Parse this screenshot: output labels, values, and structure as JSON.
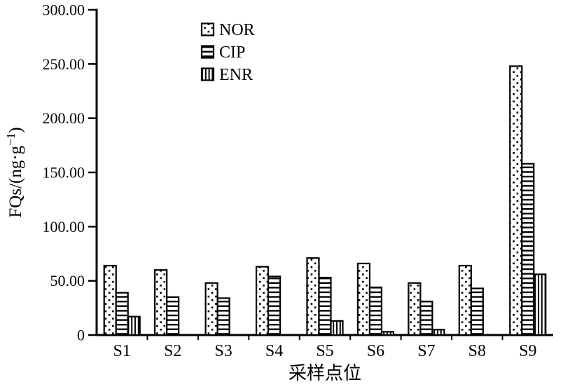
{
  "colors": {
    "ink": "#000000",
    "background": "#ffffff"
  },
  "chart_data": {
    "type": "bar",
    "title": "",
    "xlabel": "采样点位",
    "ylabel": "FQs/(ng·g⁻¹)",
    "ylabel_parts": {
      "pre": "FQs/(ng·g",
      "sup": "−1",
      "post": ")"
    },
    "categories": [
      "S1",
      "S2",
      "S3",
      "S4",
      "S5",
      "S6",
      "S7",
      "S8",
      "S9"
    ],
    "series": [
      {
        "name": "NOR",
        "pattern": "dots",
        "values": [
          64,
          60,
          48,
          63,
          71,
          66,
          48,
          64,
          248
        ]
      },
      {
        "name": "CIP",
        "pattern": "hlines",
        "values": [
          39,
          35,
          34,
          54,
          53,
          44,
          31,
          43,
          158
        ]
      },
      {
        "name": "ENR",
        "pattern": "vlines",
        "values": [
          17,
          0,
          0,
          0,
          13,
          3,
          5,
          0,
          56
        ]
      }
    ],
    "ylim": [
      0,
      300
    ],
    "ytick_step": 50,
    "yticks": [
      {
        "value": 0,
        "label": "0"
      },
      {
        "value": 50,
        "label": "50.00"
      },
      {
        "value": 100,
        "label": "100.00"
      },
      {
        "value": 150,
        "label": "150.00"
      },
      {
        "value": 200,
        "label": "200.00"
      },
      {
        "value": 250,
        "label": "250.00"
      },
      {
        "value": 300,
        "label": "300.00"
      }
    ],
    "legend_position": "top-inside",
    "grid": false,
    "bar_fill": "#ffffff",
    "bar_stroke": "#000000"
  }
}
